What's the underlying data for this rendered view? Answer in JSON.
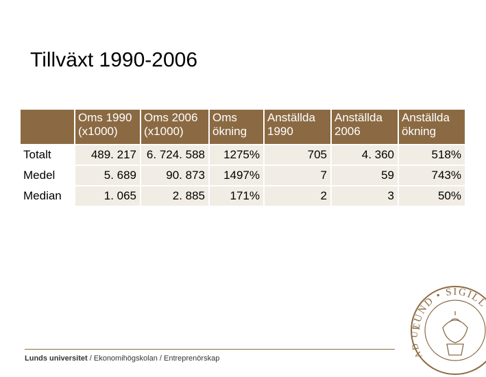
{
  "title": "Tillväxt 1990-2006",
  "table": {
    "headers": [
      {
        "line1": "Oms 1990",
        "line2": "(x1000)"
      },
      {
        "line1": "Oms 2006",
        "line2": "(x1000)"
      },
      {
        "line1": "Oms",
        "line2": "ökning"
      },
      {
        "line1": "Anställda",
        "line2": "1990"
      },
      {
        "line1": "Anställda",
        "line2": "2006"
      },
      {
        "line1": "Anställda",
        "line2": "ökning"
      }
    ],
    "rows": [
      {
        "label": "Totalt",
        "cells": [
          "489. 217",
          "6. 724. 588",
          "1275%",
          "705",
          "4. 360",
          "518%"
        ]
      },
      {
        "label": "Medel",
        "cells": [
          "5. 689",
          "90. 873",
          "1497%",
          "7",
          "59",
          "743%"
        ]
      },
      {
        "label": "Median",
        "cells": [
          "1. 065",
          "2. 885",
          "171%",
          "2",
          "3",
          "50%"
        ]
      }
    ]
  },
  "footer": {
    "org": "Lunds universitet",
    "sep1": " / ",
    "dept": "Ekonomihögskolan",
    "sep2": " / ",
    "unit": "Entreprenörskap"
  },
  "seal": {
    "text_top": "LUND • SIGILL",
    "text_bottom": "AD UTRUMQUE"
  },
  "colors": {
    "header_bg": "#8b6a43",
    "row_bg": "#f1ece4",
    "seal": "#8b6a43"
  }
}
